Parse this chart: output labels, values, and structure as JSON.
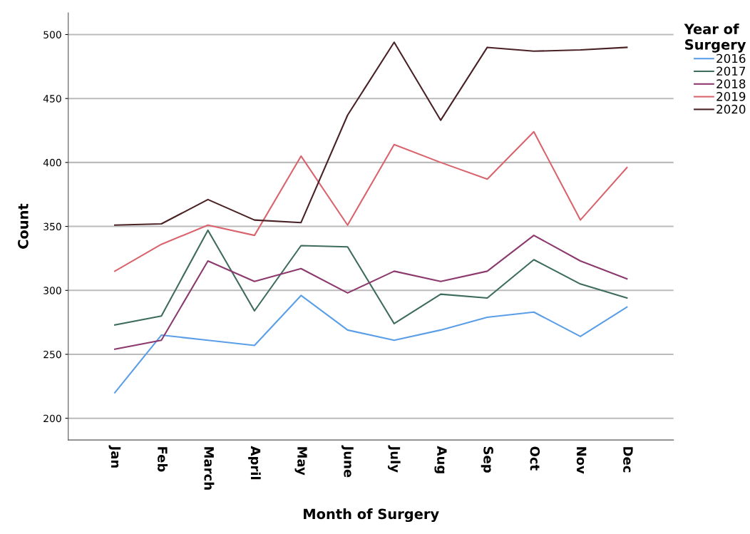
{
  "chart_data": {
    "type": "line",
    "xlabel": "Month of Surgery",
    "ylabel": "Count",
    "legend_title": "Year of\nSurgery",
    "categories": [
      "Jan",
      "Feb",
      "March",
      "April",
      "May",
      "June",
      "July",
      "Aug",
      "Sep",
      "Oct",
      "Nov",
      "Dec"
    ],
    "series": [
      {
        "name": "2016",
        "color": "#5b9ee8",
        "values": [
          220,
          265,
          261,
          257,
          296,
          269,
          261,
          269,
          279,
          283,
          264,
          287
        ]
      },
      {
        "name": "2017",
        "color": "#3d6b5e",
        "values": [
          273,
          280,
          347,
          284,
          335,
          334,
          274,
          297,
          294,
          324,
          305,
          294
        ]
      },
      {
        "name": "2018",
        "color": "#8c3a6e",
        "values": [
          254,
          261,
          323,
          307,
          317,
          298,
          315,
          307,
          315,
          343,
          323,
          309
        ]
      },
      {
        "name": "2019",
        "color": "#d9646e",
        "values": [
          315,
          336,
          351,
          343,
          405,
          351,
          414,
          400,
          387,
          424,
          355,
          396
        ]
      },
      {
        "name": "2020",
        "color": "#4a2125",
        "values": [
          351,
          352,
          371,
          355,
          353,
          437,
          494,
          433,
          490,
          487,
          488,
          490
        ]
      }
    ],
    "ylim": [
      183,
      517
    ],
    "yticks": [
      200,
      250,
      300,
      350,
      400,
      450,
      500
    ],
    "grid": "y",
    "legend": "top right",
    "marker": "none",
    "line_style": "solid"
  }
}
